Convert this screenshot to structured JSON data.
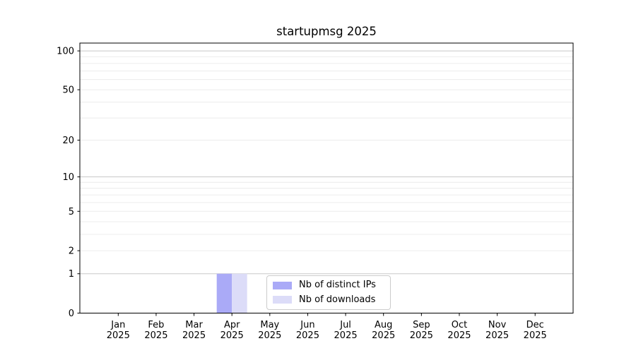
{
  "chart_data": {
    "type": "bar",
    "title": "startupmsg 2025",
    "categories": [
      "Jan",
      "Feb",
      "Mar",
      "Apr",
      "May",
      "Jun",
      "Jul",
      "Aug",
      "Sep",
      "Oct",
      "Nov",
      "Dec"
    ],
    "year_label": "2025",
    "series": [
      {
        "name": "Nb of distinct IPs",
        "color": "#aaaaf7",
        "values": [
          0,
          0,
          0,
          1,
          0,
          0,
          0,
          0,
          0,
          0,
          0,
          0
        ]
      },
      {
        "name": "Nb of downloads",
        "color": "#dcdcf8",
        "values": [
          0,
          0,
          0,
          1,
          0,
          0,
          0,
          0,
          0,
          0,
          0,
          0
        ]
      }
    ],
    "yticks": [
      0,
      1,
      2,
      5,
      10,
      20,
      50,
      100
    ],
    "ylim": [
      0,
      114
    ],
    "scale": "log10(1+y)",
    "grid": {
      "major": [
        1,
        10,
        100
      ],
      "minor": [
        2,
        3,
        4,
        5,
        6,
        7,
        8,
        9,
        20,
        30,
        40,
        50,
        60,
        70,
        80,
        90
      ],
      "major_color": "#c8c8c8",
      "minor_color": "#ececec"
    },
    "legend_position": "lower center",
    "axis_color": "#000000",
    "background_color": "#ffffff"
  }
}
